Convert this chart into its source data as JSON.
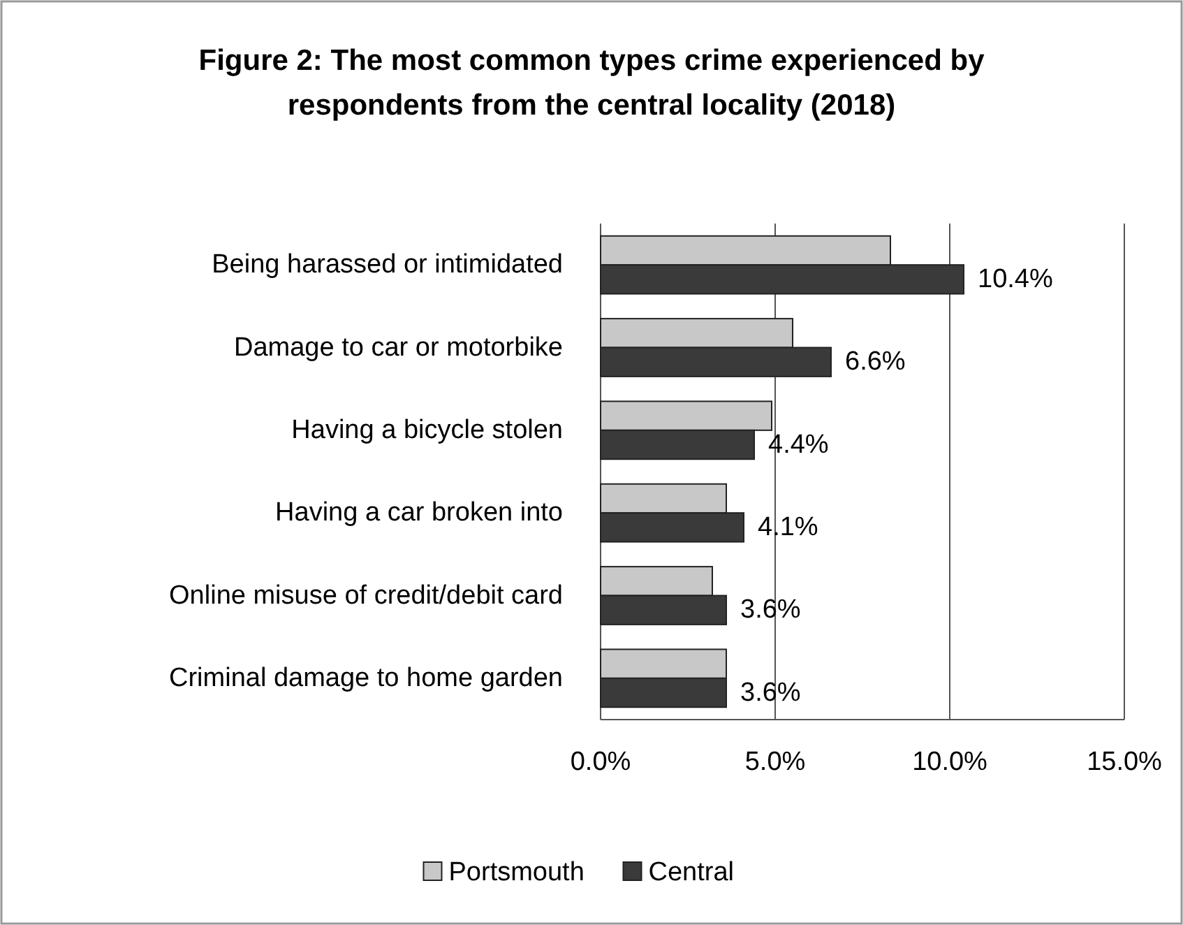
{
  "chart_data": {
    "type": "bar",
    "orientation": "horizontal",
    "title": "Figure 2: The most common types crime experienced by respondents from the central locality (2018)",
    "categories": [
      "Being harassed or intimidated",
      "Damage to car or motorbike",
      "Having a bicycle stolen",
      "Having a car broken into",
      "Online misuse of credit/debit card",
      "Criminal damage to home garden"
    ],
    "series": [
      {
        "name": "Portsmouth",
        "color": "#c8c8c8",
        "values": [
          8.3,
          5.5,
          4.9,
          3.6,
          3.2,
          3.6
        ]
      },
      {
        "name": "Central",
        "color": "#3a3a3a",
        "values": [
          10.4,
          6.6,
          4.4,
          4.1,
          3.6,
          3.6
        ],
        "value_labels": [
          "10.4%",
          "6.6%",
          "4.4%",
          "4.1%",
          "3.6%",
          "3.6%"
        ]
      }
    ],
    "xlim": [
      0,
      15
    ],
    "xticks": [
      {
        "value": 0,
        "label": "0.0%"
      },
      {
        "value": 5,
        "label": "5.0%"
      },
      {
        "value": 10,
        "label": "10.0%"
      },
      {
        "value": 15,
        "label": "15.0%"
      }
    ],
    "grid": "x",
    "legend": "bottom"
  }
}
